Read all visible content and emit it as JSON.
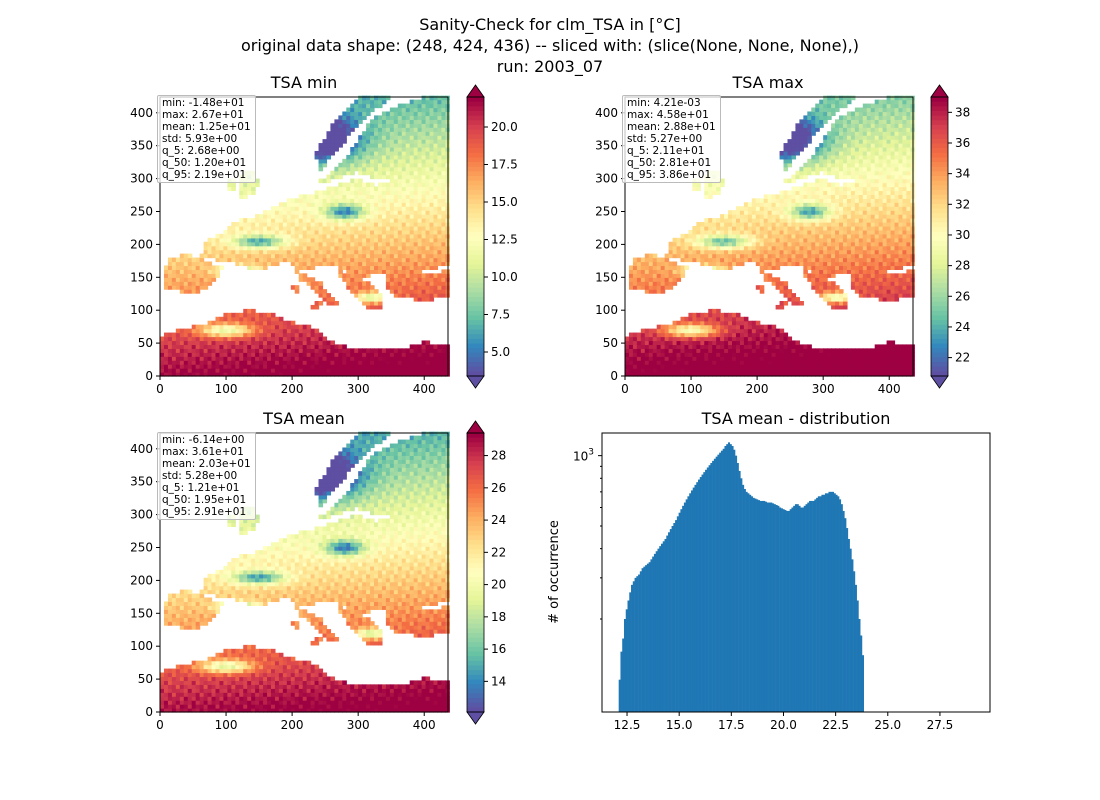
{
  "figure": {
    "suptitle": [
      "Sanity-Check for clm_TSA in [°C]",
      "original data shape: (248, 424, 436) -- sliced with: (slice(None, None, None),)",
      "run: 2003_07"
    ]
  },
  "colors": {
    "spectral": [
      "#9e0142",
      "#d53e4f",
      "#f46d43",
      "#fdae61",
      "#fee08b",
      "#ffffbf",
      "#e6f598",
      "#abdda4",
      "#66c2a5",
      "#3288bd",
      "#5e4fa2"
    ],
    "hist_bar": "#1f77b4"
  },
  "chart_data": [
    {
      "type": "heatmap",
      "title": "TSA min",
      "x_ticks": [
        "0",
        "100",
        "200",
        "300",
        "400"
      ],
      "y_ticks": [
        "0",
        "50",
        "100",
        "150",
        "200",
        "250",
        "300",
        "350",
        "400"
      ],
      "xlim": [
        0,
        436
      ],
      "ylim": [
        0,
        424
      ],
      "colormap": "Spectral_r",
      "colorbar_range": [
        3.4,
        22.0
      ],
      "colorbar_ticks": [
        "5.0",
        "7.5",
        "10.0",
        "12.5",
        "15.0",
        "17.5",
        "20.0"
      ],
      "stats": [
        "min: -1.48e+01",
        "max: 2.67e+01",
        "mean: 1.25e+01",
        "std: 5.93e+00",
        "q_5: 2.68e+00",
        "q_50: 1.20e+01",
        "q_95: 2.19e+01"
      ]
    },
    {
      "type": "heatmap",
      "title": "TSA max",
      "x_ticks": [
        "0",
        "100",
        "200",
        "300",
        "400"
      ],
      "y_ticks": [
        "0",
        "50",
        "100",
        "150",
        "200",
        "250",
        "300",
        "350",
        "400"
      ],
      "xlim": [
        0,
        436
      ],
      "ylim": [
        0,
        424
      ],
      "colormap": "Spectral_r",
      "colorbar_range": [
        20.8,
        39.0
      ],
      "colorbar_ticks": [
        "22",
        "24",
        "26",
        "28",
        "30",
        "32",
        "34",
        "36",
        "38"
      ],
      "stats": [
        "min: 4.21e-03",
        "max: 4.58e+01",
        "mean: 2.88e+01",
        "std: 5.27e+00",
        "q_5: 2.11e+01",
        "q_50: 2.81e+01",
        "q_95: 3.86e+01"
      ]
    },
    {
      "type": "heatmap",
      "title": "TSA mean",
      "x_ticks": [
        "0",
        "100",
        "200",
        "300",
        "400"
      ],
      "y_ticks": [
        "0",
        "50",
        "100",
        "150",
        "200",
        "250",
        "300",
        "350",
        "400"
      ],
      "xlim": [
        0,
        436
      ],
      "ylim": [
        0,
        424
      ],
      "colormap": "Spectral_r",
      "colorbar_range": [
        12.1,
        29.4
      ],
      "colorbar_ticks": [
        "14",
        "16",
        "18",
        "20",
        "22",
        "24",
        "26",
        "28"
      ],
      "stats": [
        "min: -6.14e+00",
        "max: 3.61e+01",
        "mean: 2.03e+01",
        "std: 5.28e+00",
        "q_5: 1.21e+01",
        "q_50: 1.95e+01",
        "q_95: 2.91e+01"
      ]
    },
    {
      "type": "bar",
      "title": "TSA mean - distribution",
      "xlabel": "",
      "ylabel": "# of occurrence",
      "x_ticks": [
        "12.5",
        "15.0",
        "17.5",
        "20.0",
        "22.5",
        "25.0",
        "27.5"
      ],
      "y_tick_label": "10^3",
      "xlim": [
        11.3,
        29.9
      ],
      "ylog": true,
      "bin_start": 12.1,
      "bin_width": 0.0845,
      "counts": [
        110,
        145,
        165,
        200,
        220,
        240,
        260,
        280,
        290,
        300,
        305,
        310,
        320,
        330,
        335,
        340,
        345,
        350,
        360,
        370,
        380,
        390,
        400,
        410,
        420,
        430,
        440,
        455,
        470,
        485,
        500,
        515,
        530,
        550,
        570,
        590,
        610,
        630,
        650,
        670,
        690,
        710,
        730,
        750,
        770,
        790,
        810,
        830,
        850,
        870,
        890,
        910,
        930,
        950,
        970,
        990,
        1010,
        1030,
        1050,
        1070,
        1100,
        1120,
        1140,
        1120,
        1100,
        1060,
        1000,
        930,
        860,
        800,
        750,
        720,
        700,
        690,
        680,
        670,
        660,
        655,
        650,
        645,
        640,
        640,
        640,
        635,
        630,
        630,
        630,
        625,
        620,
        615,
        610,
        600,
        595,
        590,
        585,
        580,
        580,
        590,
        600,
        610,
        620,
        620,
        610,
        600,
        600,
        610,
        620,
        630,
        640,
        640,
        640,
        650,
        660,
        670,
        670,
        680,
        680,
        690,
        690,
        700,
        700,
        700,
        690,
        680,
        670,
        650,
        620,
        580,
        540,
        490,
        440,
        400,
        360,
        320,
        280,
        240,
        200,
        170,
        140
      ],
      "ylim": [
        80,
        1250
      ],
      "ytick_value": 1000
    }
  ]
}
